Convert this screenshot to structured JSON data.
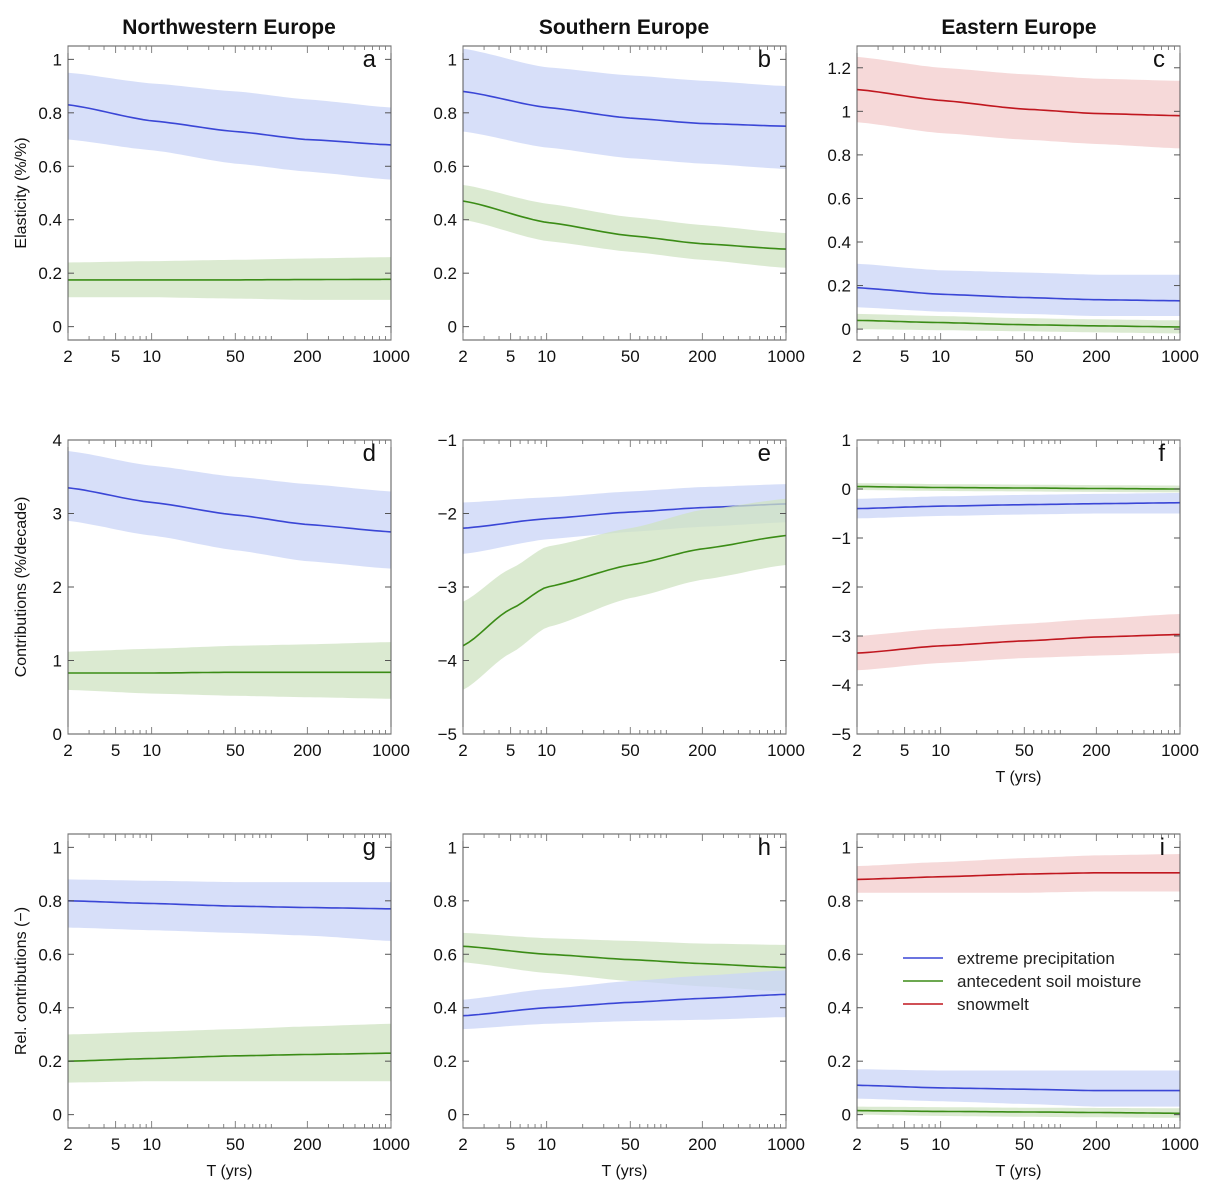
{
  "columns": [
    "Northwestern Europe",
    "Southern Europe",
    "Eastern Europe"
  ],
  "colors": {
    "precip": "#3a46d6",
    "soil": "#3b8c16",
    "snow": "#c0171f",
    "precip_band": "#c9d4f7",
    "soil_band": "#cfe3c2",
    "snow_band": "#f3cccc"
  },
  "legend": [
    {
      "key": "precip",
      "label": "extreme precipitation"
    },
    {
      "key": "soil",
      "label": "antecedent soil moisture"
    },
    {
      "key": "snow",
      "label": "snowmelt"
    }
  ],
  "chart_data": [
    {
      "id": "a",
      "type": "line",
      "col": 0,
      "row": 0,
      "ylabel": "Elasticity (%/%)",
      "xlabel": "",
      "xscale": "log",
      "xlim": [
        2,
        1000
      ],
      "xticks": [
        2,
        5,
        10,
        50,
        200,
        1000
      ],
      "ylim": [
        -0.05,
        1.05
      ],
      "yticks": [
        "0",
        "0.2",
        "0.4",
        "0.6",
        "0.8",
        "1"
      ],
      "series": [
        {
          "key": "precip",
          "x": [
            2,
            10,
            50,
            200,
            1000
          ],
          "y": [
            0.83,
            0.77,
            0.73,
            0.7,
            0.68
          ],
          "lo": [
            0.7,
            0.66,
            0.61,
            0.58,
            0.55
          ],
          "hi": [
            0.95,
            0.91,
            0.88,
            0.85,
            0.82
          ]
        },
        {
          "key": "soil",
          "x": [
            2,
            10,
            50,
            200,
            1000
          ],
          "y": [
            0.175,
            0.175,
            0.175,
            0.176,
            0.177
          ],
          "lo": [
            0.11,
            0.11,
            0.105,
            0.1,
            0.1
          ],
          "hi": [
            0.24,
            0.245,
            0.25,
            0.255,
            0.26
          ]
        }
      ]
    },
    {
      "id": "b",
      "type": "line",
      "col": 1,
      "row": 0,
      "ylabel": "",
      "xlabel": "",
      "xscale": "log",
      "xlim": [
        2,
        1000
      ],
      "xticks": [
        2,
        5,
        10,
        50,
        200,
        1000
      ],
      "ylim": [
        -0.05,
        1.05
      ],
      "yticks": [
        "0",
        "0.2",
        "0.4",
        "0.6",
        "0.8",
        "1"
      ],
      "series": [
        {
          "key": "precip",
          "x": [
            2,
            10,
            50,
            200,
            1000
          ],
          "y": [
            0.88,
            0.82,
            0.78,
            0.76,
            0.75
          ],
          "lo": [
            0.73,
            0.67,
            0.63,
            0.61,
            0.59
          ],
          "hi": [
            1.04,
            0.97,
            0.94,
            0.92,
            0.9
          ]
        },
        {
          "key": "soil",
          "x": [
            2,
            10,
            50,
            200,
            1000
          ],
          "y": [
            0.47,
            0.39,
            0.34,
            0.31,
            0.29
          ],
          "lo": [
            0.4,
            0.32,
            0.28,
            0.25,
            0.22
          ],
          "hi": [
            0.53,
            0.46,
            0.41,
            0.38,
            0.35
          ]
        }
      ]
    },
    {
      "id": "c",
      "type": "line",
      "col": 2,
      "row": 0,
      "ylabel": "",
      "xlabel": "",
      "xscale": "log",
      "xlim": [
        2,
        1000
      ],
      "xticks": [
        2,
        5,
        10,
        50,
        200,
        1000
      ],
      "ylim": [
        -0.05,
        1.3
      ],
      "yticks": [
        "0",
        "0.2",
        "0.4",
        "0.6",
        "0.8",
        "1",
        "1.2"
      ],
      "series": [
        {
          "key": "snow",
          "x": [
            2,
            10,
            50,
            200,
            1000
          ],
          "y": [
            1.1,
            1.05,
            1.01,
            0.99,
            0.98
          ],
          "lo": [
            0.95,
            0.9,
            0.87,
            0.85,
            0.83
          ],
          "hi": [
            1.25,
            1.2,
            1.17,
            1.15,
            1.14
          ]
        },
        {
          "key": "precip",
          "x": [
            2,
            10,
            50,
            200,
            1000
          ],
          "y": [
            0.19,
            0.16,
            0.145,
            0.135,
            0.13
          ],
          "lo": [
            0.1,
            0.08,
            0.07,
            0.06,
            0.06
          ],
          "hi": [
            0.3,
            0.27,
            0.26,
            0.25,
            0.25
          ]
        },
        {
          "key": "soil",
          "x": [
            2,
            10,
            50,
            200,
            1000
          ],
          "y": [
            0.04,
            0.03,
            0.02,
            0.015,
            0.01
          ],
          "lo": [
            0.0,
            -0.005,
            -0.01,
            -0.015,
            -0.02
          ],
          "hi": [
            0.07,
            0.06,
            0.05,
            0.045,
            0.04
          ]
        }
      ]
    },
    {
      "id": "d",
      "type": "line",
      "col": 0,
      "row": 1,
      "ylabel": "Contributions (%/decade)",
      "xlabel": "",
      "xscale": "log",
      "xlim": [
        2,
        1000
      ],
      "xticks": [
        2,
        5,
        10,
        50,
        200,
        1000
      ],
      "ylim": [
        0,
        4
      ],
      "yticks": [
        "0",
        "1",
        "2",
        "3",
        "4"
      ],
      "series": [
        {
          "key": "precip",
          "x": [
            2,
            10,
            50,
            200,
            1000
          ],
          "y": [
            3.35,
            3.15,
            2.98,
            2.85,
            2.75
          ],
          "lo": [
            2.9,
            2.7,
            2.5,
            2.35,
            2.25
          ],
          "hi": [
            3.85,
            3.65,
            3.5,
            3.4,
            3.3
          ]
        },
        {
          "key": "soil",
          "x": [
            2,
            10,
            50,
            200,
            1000
          ],
          "y": [
            0.83,
            0.83,
            0.84,
            0.84,
            0.84
          ],
          "lo": [
            0.6,
            0.55,
            0.52,
            0.5,
            0.48
          ],
          "hi": [
            1.12,
            1.16,
            1.2,
            1.22,
            1.25
          ]
        }
      ]
    },
    {
      "id": "e",
      "type": "line",
      "col": 1,
      "row": 1,
      "ylabel": "",
      "xlabel": "",
      "xscale": "log",
      "xlim": [
        2,
        1000
      ],
      "xticks": [
        2,
        5,
        10,
        50,
        200,
        1000
      ],
      "ylim": [
        -5,
        -1
      ],
      "yticks": [
        "−5",
        "−4",
        "−3",
        "−2",
        "−1"
      ],
      "series": [
        {
          "key": "precip",
          "x": [
            2,
            10,
            50,
            200,
            1000
          ],
          "y": [
            -2.2,
            -2.07,
            -1.98,
            -1.92,
            -1.87
          ],
          "lo": [
            -2.55,
            -2.35,
            -2.25,
            -2.18,
            -2.12
          ],
          "hi": [
            -1.85,
            -1.78,
            -1.7,
            -1.64,
            -1.6
          ]
        },
        {
          "key": "soil",
          "x": [
            2,
            5,
            10,
            50,
            200,
            1000
          ],
          "y": [
            -3.8,
            -3.3,
            -3.0,
            -2.7,
            -2.48,
            -2.3
          ],
          "lo": [
            -4.4,
            -3.9,
            -3.55,
            -3.15,
            -2.9,
            -2.7
          ],
          "hi": [
            -3.2,
            -2.75,
            -2.45,
            -2.2,
            -1.95,
            -1.8
          ]
        }
      ]
    },
    {
      "id": "f",
      "type": "line",
      "col": 2,
      "row": 1,
      "ylabel": "",
      "xlabel": "T (yrs)",
      "xscale": "log",
      "xlim": [
        2,
        1000
      ],
      "xticks": [
        2,
        5,
        10,
        50,
        200,
        1000
      ],
      "ylim": [
        -5,
        1
      ],
      "yticks": [
        "−5",
        "−4",
        "−3",
        "−2",
        "−1",
        "0",
        "1"
      ],
      "series": [
        {
          "key": "soil",
          "x": [
            2,
            10,
            50,
            200,
            1000
          ],
          "y": [
            0.05,
            0.03,
            0.02,
            0.01,
            0.0
          ],
          "lo": [
            -0.02,
            -0.04,
            -0.05,
            -0.06,
            -0.07
          ],
          "hi": [
            0.12,
            0.1,
            0.09,
            0.08,
            0.07
          ]
        },
        {
          "key": "precip",
          "x": [
            2,
            10,
            50,
            200,
            1000
          ],
          "y": [
            -0.4,
            -0.35,
            -0.32,
            -0.3,
            -0.28
          ],
          "lo": [
            -0.6,
            -0.55,
            -0.52,
            -0.5,
            -0.5
          ],
          "hi": [
            -0.2,
            -0.15,
            -0.12,
            -0.1,
            -0.08
          ]
        },
        {
          "key": "snow",
          "x": [
            2,
            10,
            50,
            200,
            1000
          ],
          "y": [
            -3.35,
            -3.2,
            -3.1,
            -3.02,
            -2.97
          ],
          "lo": [
            -3.7,
            -3.55,
            -3.45,
            -3.4,
            -3.35
          ],
          "hi": [
            -3.0,
            -2.85,
            -2.75,
            -2.65,
            -2.55
          ]
        }
      ]
    },
    {
      "id": "g",
      "type": "line",
      "col": 0,
      "row": 2,
      "ylabel": "Rel. contributions (−)",
      "xlabel": "T (yrs)",
      "xscale": "log",
      "xlim": [
        2,
        1000
      ],
      "xticks": [
        2,
        5,
        10,
        50,
        200,
        1000
      ],
      "ylim": [
        -0.05,
        1.05
      ],
      "yticks": [
        "0",
        "0.2",
        "0.4",
        "0.6",
        "0.8",
        "1"
      ],
      "series": [
        {
          "key": "precip",
          "x": [
            2,
            10,
            50,
            200,
            1000
          ],
          "y": [
            0.8,
            0.79,
            0.78,
            0.775,
            0.77
          ],
          "lo": [
            0.7,
            0.69,
            0.68,
            0.67,
            0.65
          ],
          "hi": [
            0.88,
            0.875,
            0.87,
            0.87,
            0.87
          ]
        },
        {
          "key": "soil",
          "x": [
            2,
            10,
            50,
            200,
            1000
          ],
          "y": [
            0.2,
            0.21,
            0.22,
            0.225,
            0.23
          ],
          "lo": [
            0.12,
            0.125,
            0.125,
            0.125,
            0.125
          ],
          "hi": [
            0.3,
            0.31,
            0.32,
            0.33,
            0.34
          ]
        }
      ]
    },
    {
      "id": "h",
      "type": "line",
      "col": 1,
      "row": 2,
      "ylabel": "",
      "xlabel": "T (yrs)",
      "xscale": "log",
      "xlim": [
        2,
        1000
      ],
      "xticks": [
        2,
        5,
        10,
        50,
        200,
        1000
      ],
      "ylim": [
        -0.05,
        1.05
      ],
      "yticks": [
        "0",
        "0.2",
        "0.4",
        "0.6",
        "0.8",
        "1"
      ],
      "series": [
        {
          "key": "soil",
          "x": [
            2,
            10,
            50,
            200,
            1000
          ],
          "y": [
            0.63,
            0.6,
            0.58,
            0.565,
            0.55
          ],
          "lo": [
            0.57,
            0.53,
            0.5,
            0.48,
            0.46
          ],
          "hi": [
            0.68,
            0.66,
            0.65,
            0.64,
            0.635
          ]
        },
        {
          "key": "precip",
          "x": [
            2,
            10,
            50,
            200,
            1000
          ],
          "y": [
            0.37,
            0.4,
            0.42,
            0.435,
            0.45
          ],
          "lo": [
            0.32,
            0.34,
            0.35,
            0.355,
            0.365
          ],
          "hi": [
            0.43,
            0.47,
            0.5,
            0.52,
            0.54
          ]
        }
      ]
    },
    {
      "id": "i",
      "type": "line",
      "col": 2,
      "row": 2,
      "ylabel": "",
      "xlabel": "T (yrs)",
      "xscale": "log",
      "xlim": [
        2,
        1000
      ],
      "xticks": [
        2,
        5,
        10,
        50,
        200,
        1000
      ],
      "ylim": [
        -0.05,
        1.05
      ],
      "yticks": [
        "0",
        "0.2",
        "0.4",
        "0.6",
        "0.8",
        "1"
      ],
      "legend": "center-right",
      "series": [
        {
          "key": "snow",
          "x": [
            2,
            10,
            50,
            200,
            1000
          ],
          "y": [
            0.88,
            0.89,
            0.9,
            0.905,
            0.905
          ],
          "lo": [
            0.83,
            0.83,
            0.83,
            0.835,
            0.835
          ],
          "hi": [
            0.93,
            0.945,
            0.96,
            0.97,
            0.975
          ]
        },
        {
          "key": "precip",
          "x": [
            2,
            10,
            50,
            200,
            1000
          ],
          "y": [
            0.11,
            0.1,
            0.095,
            0.09,
            0.09
          ],
          "lo": [
            0.06,
            0.05,
            0.04,
            0.03,
            0.03
          ],
          "hi": [
            0.17,
            0.165,
            0.165,
            0.165,
            0.165
          ]
        },
        {
          "key": "soil",
          "x": [
            2,
            10,
            50,
            200,
            1000
          ],
          "y": [
            0.015,
            0.012,
            0.01,
            0.008,
            0.005
          ],
          "lo": [
            0.0,
            -0.005,
            -0.008,
            -0.01,
            -0.012
          ],
          "hi": [
            0.03,
            0.028,
            0.026,
            0.025,
            0.024
          ]
        }
      ]
    }
  ]
}
